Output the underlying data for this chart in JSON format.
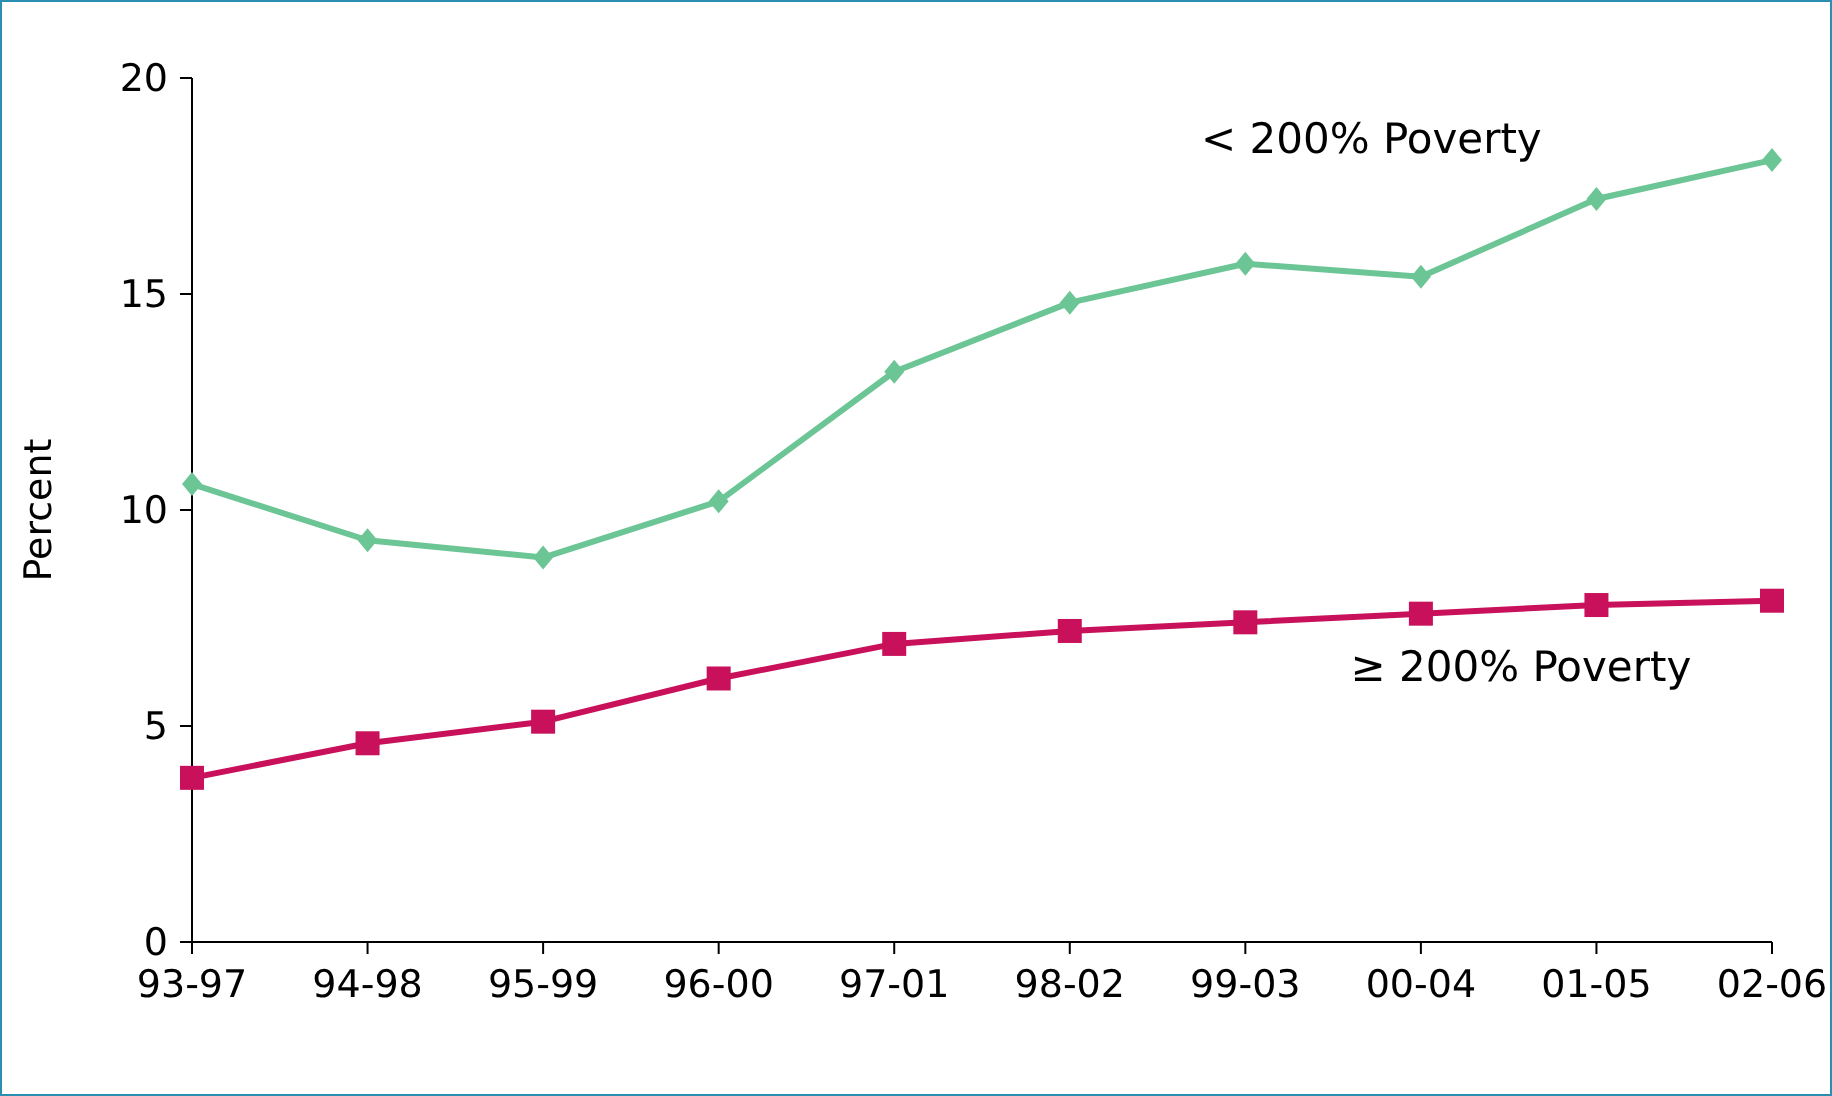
{
  "chart_data": {
    "type": "line",
    "ylabel": "Percent",
    "categories": [
      "93-97",
      "94-98",
      "95-99",
      "96-00",
      "97-01",
      "98-02",
      "99-03",
      "00-04",
      "01-05",
      "02-06"
    ],
    "series": [
      {
        "name": "< 200% Poverty",
        "color": "#6cc595",
        "marker": "diamond",
        "values": [
          10.6,
          9.3,
          8.9,
          10.2,
          13.2,
          14.8,
          15.7,
          15.4,
          17.2,
          18.1
        ]
      },
      {
        "name": "≥ 200% Poverty",
        "color": "#c8115a",
        "marker": "square",
        "values": [
          3.8,
          4.6,
          5.1,
          6.1,
          6.9,
          7.2,
          7.4,
          7.6,
          7.8,
          7.9
        ]
      }
    ],
    "ylim": [
      0,
      20
    ],
    "yticks": [
      0,
      5,
      10,
      15,
      20
    ],
    "grid": false,
    "legend": false
  }
}
